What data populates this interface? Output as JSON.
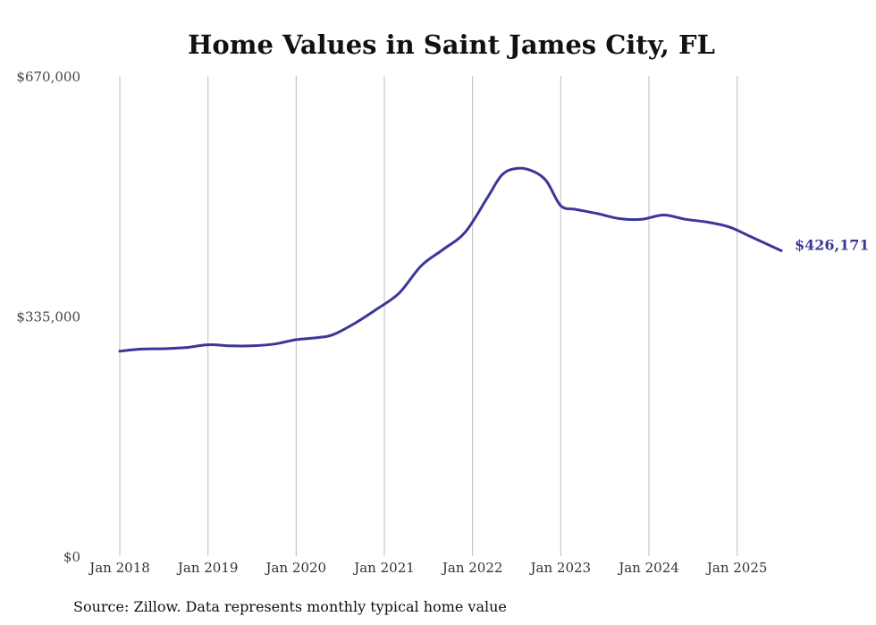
{
  "chart_data": {
    "type": "line",
    "title": "Home Values in Saint James City, FL",
    "source": "Source: Zillow. Data represents monthly typical home value",
    "ylim": [
      0,
      670000
    ],
    "y_tick_values": [
      0,
      335000,
      670000
    ],
    "y_tick_labels": [
      "$0",
      "$335,000",
      "$670,000"
    ],
    "x_tick_labels": [
      "Jan 2018",
      "Jan 2019",
      "Jan 2020",
      "Jan 2021",
      "Jan 2022",
      "Jan 2023",
      "Jan 2024",
      "Jan 2025"
    ],
    "xlim": [
      "2018-01",
      "2025-07"
    ],
    "grid": "vertical",
    "line_color": "#3b3799",
    "end_label": "$426,171",
    "series": [
      {
        "x": [
          "2018-01",
          "2018-04",
          "2018-07",
          "2018-10",
          "2019-01",
          "2019-04",
          "2019-07",
          "2019-10",
          "2020-01",
          "2020-04",
          "2020-06",
          "2020-09",
          "2020-12",
          "2021-03",
          "2021-06",
          "2021-09",
          "2021-12",
          "2022-03",
          "2022-05",
          "2022-07",
          "2022-09",
          "2022-11",
          "2023-01",
          "2023-03",
          "2023-06",
          "2023-09",
          "2023-12",
          "2024-03",
          "2024-06",
          "2024-09",
          "2024-12",
          "2025-03",
          "2025-07"
        ],
        "values": [
          286000,
          289000,
          289500,
          291000,
          295000,
          293500,
          293500,
          296000,
          302000,
          305000,
          309000,
          325000,
          345000,
          367000,
          405000,
          428000,
          452000,
          500000,
          532000,
          541000,
          538000,
          524000,
          489000,
          484000,
          478000,
          471000,
          470000,
          476000,
          470000,
          466000,
          459000,
          445000,
          426171
        ]
      }
    ]
  }
}
